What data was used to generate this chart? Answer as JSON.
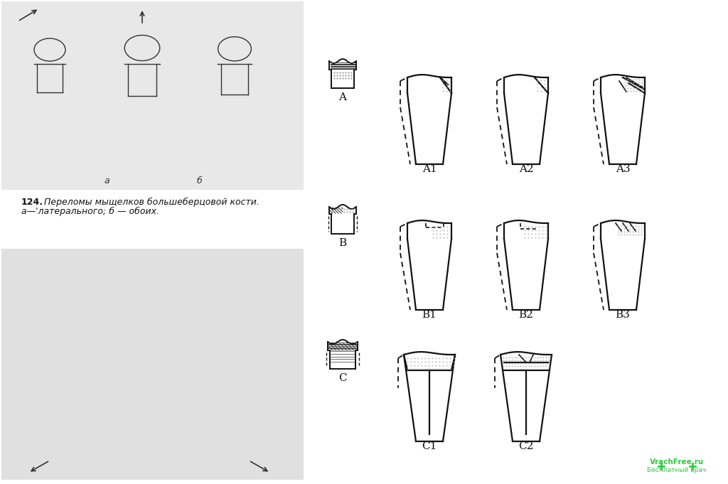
{
  "background_color": "#ffffff",
  "text_color": "#111111",
  "caption_bold": "124.",
  "caption_italic": " Переломы мыщелков большеберцовой кости.",
  "caption_line2": "а—'латерального; б — обоих.",
  "label_a": "а",
  "label_b": "б",
  "watermark_line1": "VrachFree.ru",
  "watermark_line2": "Бесплатный врач",
  "watermark_color_green": "#2ecc40",
  "watermark_color_red": "#e74c3c",
  "labels": [
    "A",
    "A1",
    "A2",
    "A3",
    "B",
    "B1",
    "B2",
    "B3",
    "C",
    "C1",
    "C2"
  ],
  "bone_color": "#111111",
  "hatch_color": "#222222",
  "dashed_color": "#333333",
  "dot_color": "#aaaaaa",
  "fig_width": 10.24,
  "fig_height": 6.81,
  "fig_dpi": 100
}
